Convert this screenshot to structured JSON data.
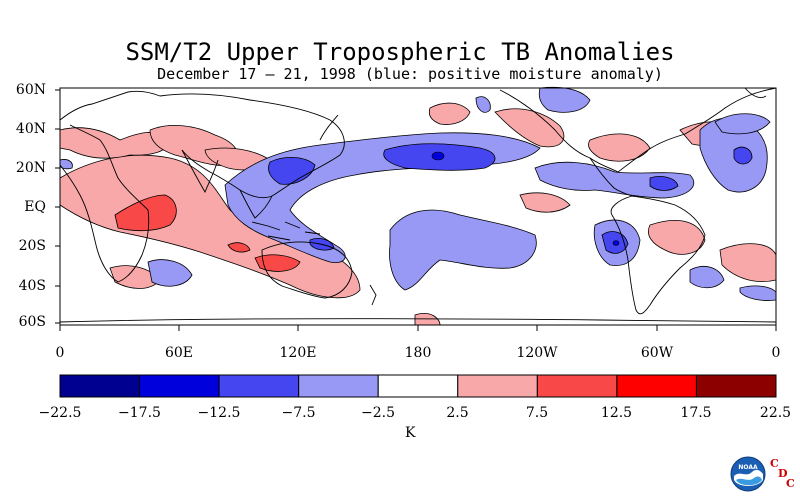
{
  "title": "SSM/T2 Upper Tropospheric TB Anomalies",
  "subtitle": "December 17 – 21, 1998 (blue: positive moisture anomaly)",
  "lat_labels": [
    "60N",
    "40N",
    "20N",
    "EQ",
    "20S",
    "40S",
    "60S"
  ],
  "lon_labels": [
    "0",
    "60E",
    "120E",
    "180",
    "120W",
    "60W",
    "0"
  ],
  "colorbar": {
    "labels": [
      "−22.5",
      "−17.5",
      "−12.5",
      "−7.5",
      "−2.5",
      "2.5",
      "7.5",
      "12.5",
      "17.5",
      "22.5"
    ],
    "colors": [
      "#000090",
      "#0000dd",
      "#4646f0",
      "#9898f5",
      "#ffffff",
      "#f8a8a8",
      "#f84848",
      "#ff0000",
      "#8c0000"
    ],
    "units": "K"
  },
  "logo": {
    "name": "NOAA",
    "org_letters": [
      "C",
      "D",
      "C"
    ]
  },
  "colors": {
    "blue_light": "#9898f5",
    "blue_mid": "#4646f0",
    "red_light": "#f8a8a8",
    "red_mid": "#f84848"
  }
}
